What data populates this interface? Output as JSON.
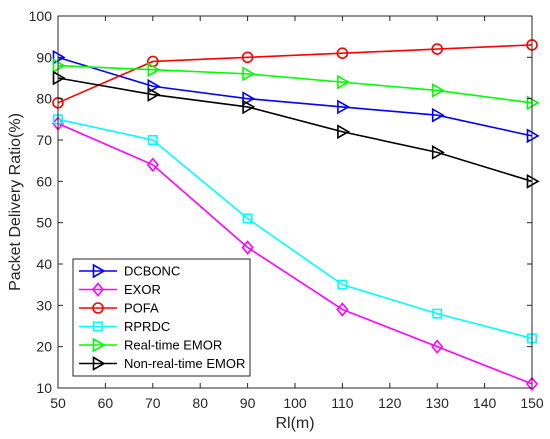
{
  "chart_data": {
    "type": "line",
    "title": "",
    "xlabel": "Rl(m)",
    "ylabel": "Packet Delivery Ratio(%)",
    "x": [
      50,
      70,
      90,
      110,
      130,
      150
    ],
    "xlim": [
      50,
      150
    ],
    "ylim": [
      10,
      100
    ],
    "xticks": [
      "50",
      "60",
      "70",
      "80",
      "90",
      "100",
      "110",
      "120",
      "130",
      "140",
      "150"
    ],
    "yticks": [
      "10",
      "20",
      "30",
      "40",
      "50",
      "60",
      "70",
      "80",
      "90",
      "100"
    ],
    "grid": false,
    "legend_position": "bottom-left",
    "series": [
      {
        "name": "DCBONC",
        "color": "#0000ff",
        "marker": "triangle-right",
        "values": [
          90,
          83,
          80,
          78,
          76,
          71
        ]
      },
      {
        "name": "EXOR",
        "color": "#ff00ff",
        "marker": "diamond",
        "values": [
          74,
          64,
          44,
          29,
          20,
          11
        ]
      },
      {
        "name": "POFA",
        "color": "#ff0000",
        "marker": "circle",
        "values": [
          79,
          89,
          90,
          91,
          92,
          93
        ]
      },
      {
        "name": "RPRDC",
        "color": "#00ffff",
        "marker": "square",
        "values": [
          75,
          70,
          51,
          35,
          28,
          22
        ]
      },
      {
        "name": "Real-time EMOR",
        "color": "#00ff00",
        "marker": "triangle-right",
        "values": [
          88,
          87,
          86,
          84,
          82,
          79
        ]
      },
      {
        "name": "Non-real-time EMOR",
        "color": "#000000",
        "marker": "triangle-right",
        "values": [
          85,
          81,
          78,
          72,
          67,
          60
        ]
      }
    ]
  }
}
